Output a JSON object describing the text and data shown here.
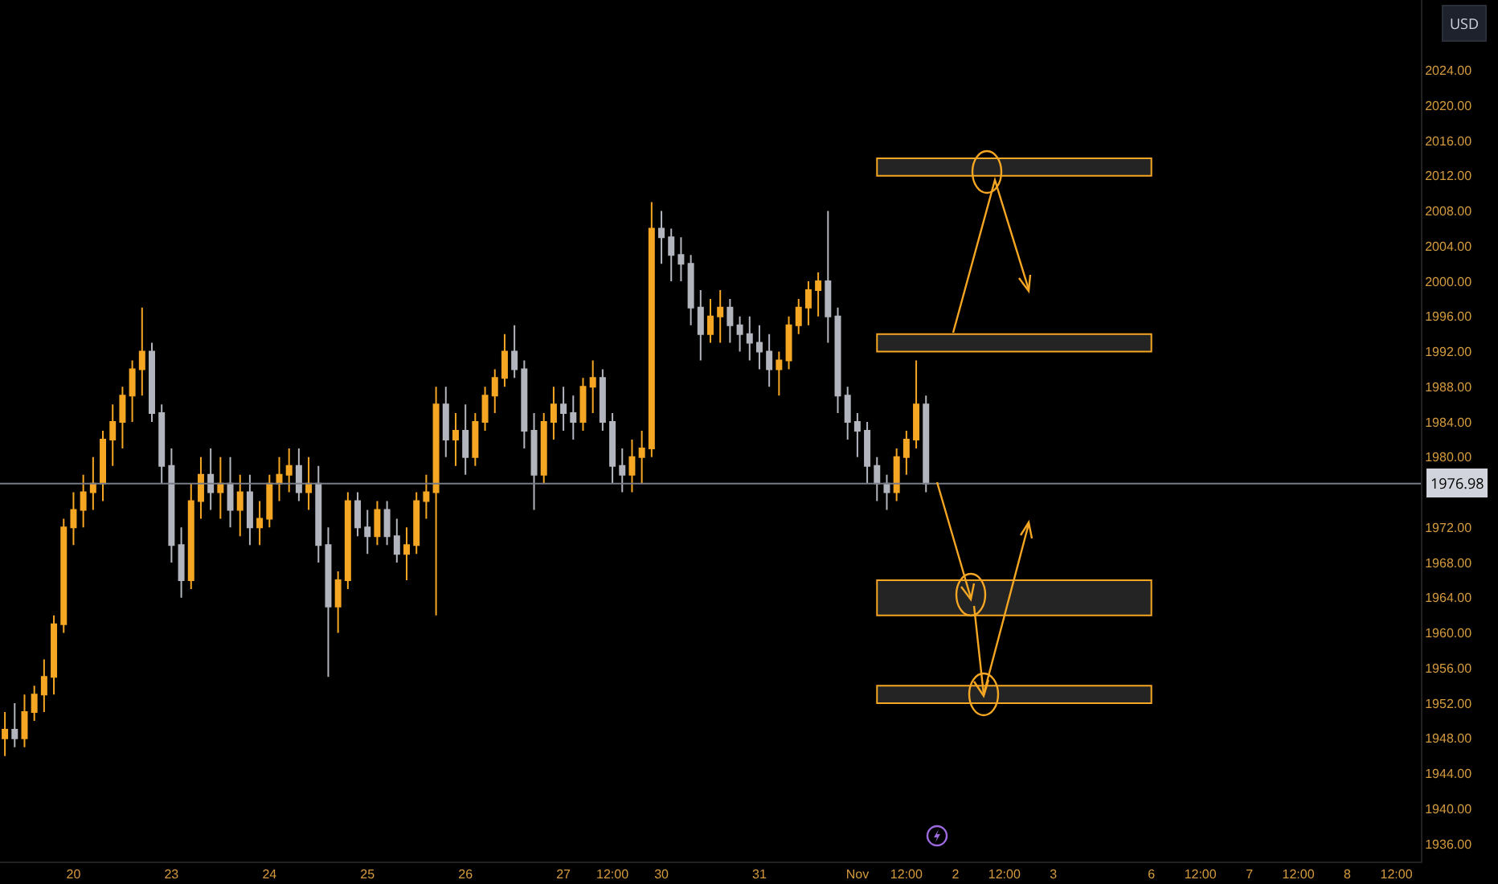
{
  "chart_data": {
    "type": "candlestick",
    "categories": [
      null,
      null,
      null,
      null,
      null,
      null,
      null,
      "20",
      null,
      null,
      null,
      null,
      null,
      null,
      null,
      null,
      null,
      "23",
      null,
      null,
      null,
      null,
      null,
      null,
      null,
      null,
      null,
      "24",
      null,
      null,
      null,
      null,
      null,
      null,
      null,
      null,
      null,
      "25",
      null,
      null,
      null,
      null,
      null,
      null,
      null,
      null,
      null,
      "26",
      null,
      null,
      null,
      null,
      null,
      null,
      null,
      null,
      null,
      "27",
      null,
      null,
      null,
      null,
      "12:00",
      null,
      null,
      null,
      null,
      "30",
      null,
      null,
      null,
      null,
      null,
      null,
      null,
      null,
      null,
      "31",
      null,
      null,
      null,
      null,
      null,
      null,
      null,
      null,
      null,
      "Nov",
      null,
      null,
      null,
      null,
      "12:00",
      null,
      null,
      null,
      null,
      "2",
      null,
      null,
      null,
      null,
      "12:00",
      null,
      null,
      null,
      null,
      "3",
      null,
      null,
      null,
      null,
      null,
      null,
      null,
      null,
      null,
      "6",
      null,
      null,
      null,
      null,
      "12:00",
      null,
      null,
      null,
      null,
      "7",
      null,
      null,
      null,
      null,
      "12:00",
      null,
      null,
      null,
      null,
      "8",
      null,
      null,
      null,
      null,
      "12:00",
      null,
      null
    ],
    "ohlc": [
      [
        1948,
        1951,
        1946,
        1949
      ],
      [
        1949,
        1952,
        1947,
        1948
      ],
      [
        1948,
        1953,
        1947,
        1951
      ],
      [
        1951,
        1954,
        1950,
        1953
      ],
      [
        1953,
        1957,
        1951,
        1955
      ],
      [
        1955,
        1962,
        1953,
        1961
      ],
      [
        1961,
        1973,
        1960,
        1972
      ],
      [
        1972,
        1976,
        1970,
        1974
      ],
      [
        1974,
        1978,
        1972,
        1976
      ],
      [
        1976,
        1980,
        1974,
        1977
      ],
      [
        1977,
        1983,
        1975,
        1982
      ],
      [
        1982,
        1986,
        1979,
        1984
      ],
      [
        1984,
        1988,
        1981,
        1987
      ],
      [
        1987,
        1991,
        1984,
        1990
      ],
      [
        1990,
        1997,
        1987,
        1992
      ],
      [
        1992,
        1993,
        1984,
        1985
      ],
      [
        1985,
        1986,
        1977,
        1979
      ],
      [
        1979,
        1981,
        1968,
        1970
      ],
      [
        1970,
        1972,
        1964,
        1966
      ],
      [
        1966,
        1977,
        1965,
        1975
      ],
      [
        1975,
        1980,
        1973,
        1978
      ],
      [
        1978,
        1981,
        1974,
        1976
      ],
      [
        1976,
        1980,
        1973,
        1977
      ],
      [
        1977,
        1980,
        1972,
        1974
      ],
      [
        1974,
        1978,
        1971,
        1976
      ],
      [
        1976,
        1978,
        1970,
        1972
      ],
      [
        1972,
        1975,
        1970,
        1973
      ],
      [
        1973,
        1978,
        1972,
        1977
      ],
      [
        1977,
        1980,
        1975,
        1978
      ],
      [
        1978,
        1981,
        1976,
        1979
      ],
      [
        1979,
        1981,
        1975,
        1976
      ],
      [
        1976,
        1980,
        1974,
        1977
      ],
      [
        1977,
        1979,
        1968,
        1970
      ],
      [
        1970,
        1972,
        1955,
        1963
      ],
      [
        1963,
        1967,
        1960,
        1966
      ],
      [
        1966,
        1976,
        1965,
        1975
      ],
      [
        1975,
        1976,
        1971,
        1972
      ],
      [
        1972,
        1974,
        1969,
        1971
      ],
      [
        1971,
        1975,
        1970,
        1974
      ],
      [
        1974,
        1975,
        1970,
        1971
      ],
      [
        1971,
        1973,
        1968,
        1969
      ],
      [
        1969,
        1972,
        1966,
        1970
      ],
      [
        1970,
        1976,
        1969,
        1975
      ],
      [
        1975,
        1978,
        1973,
        1976
      ],
      [
        1976,
        1988,
        1962,
        1986
      ],
      [
        1986,
        1988,
        1980,
        1982
      ],
      [
        1982,
        1985,
        1979,
        1983
      ],
      [
        1983,
        1986,
        1978,
        1980
      ],
      [
        1980,
        1985,
        1979,
        1984
      ],
      [
        1984,
        1988,
        1983,
        1987
      ],
      [
        1987,
        1990,
        1985,
        1989
      ],
      [
        1989,
        1994,
        1988,
        1992
      ],
      [
        1992,
        1995,
        1989,
        1990
      ],
      [
        1990,
        1991,
        1981,
        1983
      ],
      [
        1983,
        1985,
        1974,
        1978
      ],
      [
        1978,
        1985,
        1977,
        1984
      ],
      [
        1984,
        1988,
        1982,
        1986
      ],
      [
        1986,
        1988,
        1983,
        1985
      ],
      [
        1985,
        1987,
        1982,
        1984
      ],
      [
        1984,
        1989,
        1983,
        1988
      ],
      [
        1988,
        1991,
        1985,
        1989
      ],
      [
        1989,
        1990,
        1983,
        1984
      ],
      [
        1984,
        1985,
        1977,
        1979
      ],
      [
        1979,
        1981,
        1976,
        1978
      ],
      [
        1978,
        1982,
        1976,
        1980
      ],
      [
        1980,
        1983,
        1977,
        1981
      ],
      [
        1981,
        2009,
        1980,
        2006
      ],
      [
        2006,
        2008,
        2002,
        2005
      ],
      [
        2005,
        2006,
        2000,
        2003
      ],
      [
        2003,
        2005,
        2000,
        2002
      ],
      [
        2002,
        2003,
        1995,
        1997
      ],
      [
        1997,
        1999,
        1991,
        1994
      ],
      [
        1994,
        1998,
        1993,
        1996
      ],
      [
        1996,
        1999,
        1993,
        1997
      ],
      [
        1997,
        1998,
        1993,
        1995
      ],
      [
        1995,
        1996,
        1992,
        1994
      ],
      [
        1994,
        1996,
        1991,
        1993
      ],
      [
        1993,
        1995,
        1990,
        1992
      ],
      [
        1992,
        1994,
        1988,
        1990
      ],
      [
        1990,
        1992,
        1987,
        1991
      ],
      [
        1991,
        1996,
        1990,
        1995
      ],
      [
        1995,
        1998,
        1994,
        1997
      ],
      [
        1997,
        2000,
        1995,
        1999
      ],
      [
        1999,
        2001,
        1996,
        2000
      ],
      [
        2000,
        2008,
        1993,
        1996
      ],
      [
        1996,
        1997,
        1985,
        1987
      ],
      [
        1987,
        1988,
        1982,
        1984
      ],
      [
        1984,
        1985,
        1980,
        1983
      ],
      [
        1983,
        1984,
        1977,
        1979
      ],
      [
        1979,
        1980,
        1975,
        1977
      ],
      [
        1977,
        1978,
        1974,
        1976
      ],
      [
        1976,
        1981,
        1975,
        1980
      ],
      [
        1980,
        1983,
        1978,
        1982
      ],
      [
        1982,
        1991,
        1981,
        1986
      ],
      [
        1986,
        1987,
        1976,
        1977
      ],
      null,
      null,
      null,
      null,
      null,
      null,
      null,
      null,
      null,
      null,
      null,
      null,
      null,
      null,
      null,
      null,
      null,
      null,
      null,
      null,
      null,
      null,
      null,
      null,
      null,
      null,
      null,
      null,
      null,
      null,
      null,
      null,
      null,
      null,
      null,
      null,
      null,
      null,
      null,
      null,
      null,
      null,
      null,
      null,
      null,
      null,
      null,
      null,
      null,
      null
    ],
    "colors": [
      "#f5a623",
      "#b2b5be",
      "#f5a623",
      "#f5a623",
      "#f5a623",
      "#f5a623",
      "#f5a623",
      "#f5a623",
      "#f5a623",
      "#f5a623",
      "#f5a623",
      "#f5a623",
      "#f5a623",
      "#f5a623",
      "#f5a623",
      "#b2b5be",
      "#b2b5be",
      "#b2b5be",
      "#b2b5be",
      "#f5a623",
      "#f5a623",
      "#b2b5be",
      "#f5a623",
      "#b2b5be",
      "#f5a623",
      "#b2b5be",
      "#f5a623",
      "#f5a623",
      "#f5a623",
      "#f5a623",
      "#b2b5be",
      "#f5a623",
      "#b2b5be",
      "#b2b5be",
      "#f5a623",
      "#f5a623",
      "#b2b5be",
      "#b2b5be",
      "#f5a623",
      "#b2b5be",
      "#b2b5be",
      "#f5a623",
      "#f5a623",
      "#f5a623",
      "#f5a623",
      "#b2b5be",
      "#f5a623",
      "#b2b5be",
      "#f5a623",
      "#f5a623",
      "#f5a623",
      "#f5a623",
      "#b2b5be",
      "#b2b5be",
      "#b2b5be",
      "#f5a623",
      "#f5a623",
      "#b2b5be",
      "#b2b5be",
      "#f5a623",
      "#f5a623",
      "#b2b5be",
      "#b2b5be",
      "#b2b5be",
      "#f5a623",
      "#f5a623",
      "#f5a623",
      "#b2b5be",
      "#b2b5be",
      "#b2b5be",
      "#b2b5be",
      "#b2b5be",
      "#f5a623",
      "#f5a623",
      "#b2b5be",
      "#b2b5be",
      "#b2b5be",
      "#b2b5be",
      "#b2b5be",
      "#f5a623",
      "#f5a623",
      "#f5a623",
      "#f5a623",
      "#f5a623",
      "#b2b5be",
      "#b2b5be",
      "#b2b5be",
      "#b2b5be",
      "#b2b5be",
      "#b2b5be",
      "#b2b5be",
      "#f5a623",
      "#f5a623",
      "#f5a623",
      "#b2b5be",
      null,
      null,
      null,
      null,
      null,
      null,
      null,
      null,
      null,
      null,
      null,
      null,
      null,
      null,
      null,
      null,
      null,
      null,
      null,
      null,
      null,
      null,
      null,
      null,
      null,
      null,
      null,
      null,
      null,
      null,
      null,
      null,
      null,
      null,
      null,
      null,
      null,
      null,
      null,
      null,
      null,
      null,
      null,
      null,
      null,
      null,
      null,
      null,
      null,
      null
    ],
    "ylim": [
      1934,
      2032
    ],
    "yticks": [
      {
        "value": 1936,
        "label": "1936.00"
      },
      {
        "value": 1940,
        "label": "1940.00"
      },
      {
        "value": 1944,
        "label": "1944.00"
      },
      {
        "value": 1948,
        "label": "1948.00"
      },
      {
        "value": 1952,
        "label": "1952.00"
      },
      {
        "value": 1956,
        "label": "1956.00"
      },
      {
        "value": 1960,
        "label": "1960.00"
      },
      {
        "value": 1964,
        "label": "1964.00"
      },
      {
        "value": 1968,
        "label": "1968.00"
      },
      {
        "value": 1972,
        "label": "1972.00"
      },
      {
        "value": 1980,
        "label": "1980.00"
      },
      {
        "value": 1984,
        "label": "1984.00"
      },
      {
        "value": 1988,
        "label": "1988.00"
      },
      {
        "value": 1992,
        "label": "1992.00"
      },
      {
        "value": 1996,
        "label": "1996.00"
      },
      {
        "value": 2000,
        "label": "2000.00"
      },
      {
        "value": 2004,
        "label": "2004.00"
      },
      {
        "value": 2008,
        "label": "2008.00"
      },
      {
        "value": 2012,
        "label": "2012.00"
      },
      {
        "value": 2016,
        "label": "2016.00"
      },
      {
        "value": 2020,
        "label": "2020.00"
      },
      {
        "value": 2024,
        "label": "2024.00"
      }
    ],
    "ref_lines": [
      {
        "axis": "y",
        "value": 1976.98,
        "label": "1976.98",
        "color": "#787b86"
      }
    ],
    "bands": [
      {
        "axis": "y",
        "from": 2012,
        "to": 2014,
        "color": "#f5a623"
      },
      {
        "axis": "y",
        "from": 1992,
        "to": 1994,
        "color": "#f5a623"
      },
      {
        "axis": "y",
        "from": 1962,
        "to": 1966,
        "color": "#f5a623"
      },
      {
        "axis": "y",
        "from": 1952,
        "to": 1954,
        "color": "#f5a623"
      }
    ],
    "annotations": [
      "USD"
    ],
    "grid": false
  }
}
